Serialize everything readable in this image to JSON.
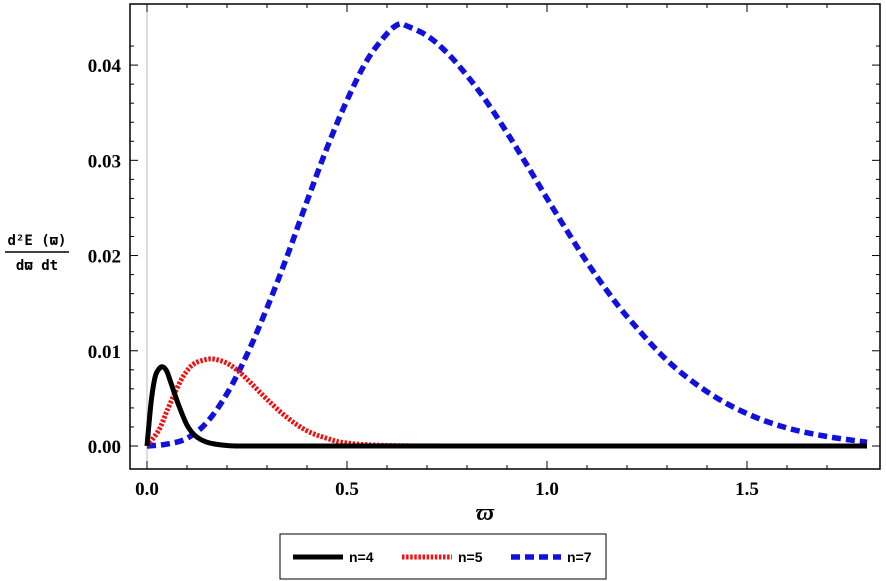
{
  "chart_data": {
    "type": "line",
    "xlabel": "ϖ",
    "ylabel": {
      "numerator": "d²E (ϖ)",
      "denominator": "dϖ dt"
    },
    "xlim": [
      0,
      1.8
    ],
    "ylim": [
      0,
      0.044
    ],
    "x_ticks": [
      "0.0",
      "0.5",
      "1.0",
      "1.5"
    ],
    "x_tick_values": [
      0,
      0.5,
      1.0,
      1.5
    ],
    "y_ticks": [
      "0.00",
      "0.01",
      "0.02",
      "0.03",
      "0.04"
    ],
    "y_tick_values": [
      0,
      0.01,
      0.02,
      0.03,
      0.04
    ],
    "grid": false,
    "legend_position": "bottom",
    "series": [
      {
        "name": "n=4",
        "color": "#000000",
        "style": "solid",
        "x": [
          0,
          0.01,
          0.02,
          0.03,
          0.04,
          0.05,
          0.06,
          0.08,
          0.1,
          0.12,
          0.15,
          0.2,
          0.25,
          0.3,
          0.4,
          0.6,
          1.0,
          1.5,
          1.8
        ],
        "y": [
          0,
          0.0045,
          0.0072,
          0.0081,
          0.0083,
          0.0078,
          0.0066,
          0.0042,
          0.0022,
          0.0011,
          0.0004,
          5e-05,
          0,
          0,
          0,
          0,
          0,
          0,
          0
        ]
      },
      {
        "name": "n=5",
        "color": "#ee1111",
        "style": "dotted",
        "x": [
          0,
          0.03,
          0.05,
          0.08,
          0.1,
          0.12,
          0.15,
          0.17,
          0.2,
          0.23,
          0.26,
          0.3,
          0.35,
          0.4,
          0.45,
          0.5,
          0.6,
          0.8,
          1.0,
          1.5,
          1.8
        ],
        "y": [
          0,
          0.0017,
          0.0037,
          0.0065,
          0.0079,
          0.0087,
          0.0091,
          0.0091,
          0.0087,
          0.0078,
          0.0066,
          0.0049,
          0.003,
          0.0016,
          0.0008,
          0.0003,
          5e-05,
          0,
          0,
          0,
          0
        ]
      },
      {
        "name": "n=7",
        "color": "#1111dd",
        "style": "dashed",
        "x": [
          0,
          0.05,
          0.1,
          0.15,
          0.2,
          0.25,
          0.3,
          0.35,
          0.4,
          0.45,
          0.5,
          0.55,
          0.6,
          0.63,
          0.65,
          0.7,
          0.75,
          0.8,
          0.85,
          0.9,
          0.95,
          1.0,
          1.05,
          1.1,
          1.15,
          1.2,
          1.3,
          1.4,
          1.5,
          1.6,
          1.7,
          1.8
        ],
        "y": [
          0,
          0.0002,
          0.0008,
          0.0025,
          0.0055,
          0.0096,
          0.0145,
          0.0199,
          0.0257,
          0.0313,
          0.0363,
          0.0405,
          0.0433,
          0.0443,
          0.0441,
          0.0431,
          0.0413,
          0.0389,
          0.0361,
          0.0329,
          0.0295,
          0.026,
          0.0226,
          0.0193,
          0.0163,
          0.0136,
          0.009,
          0.0057,
          0.0034,
          0.0019,
          0.001,
          0.0004
        ]
      }
    ]
  }
}
